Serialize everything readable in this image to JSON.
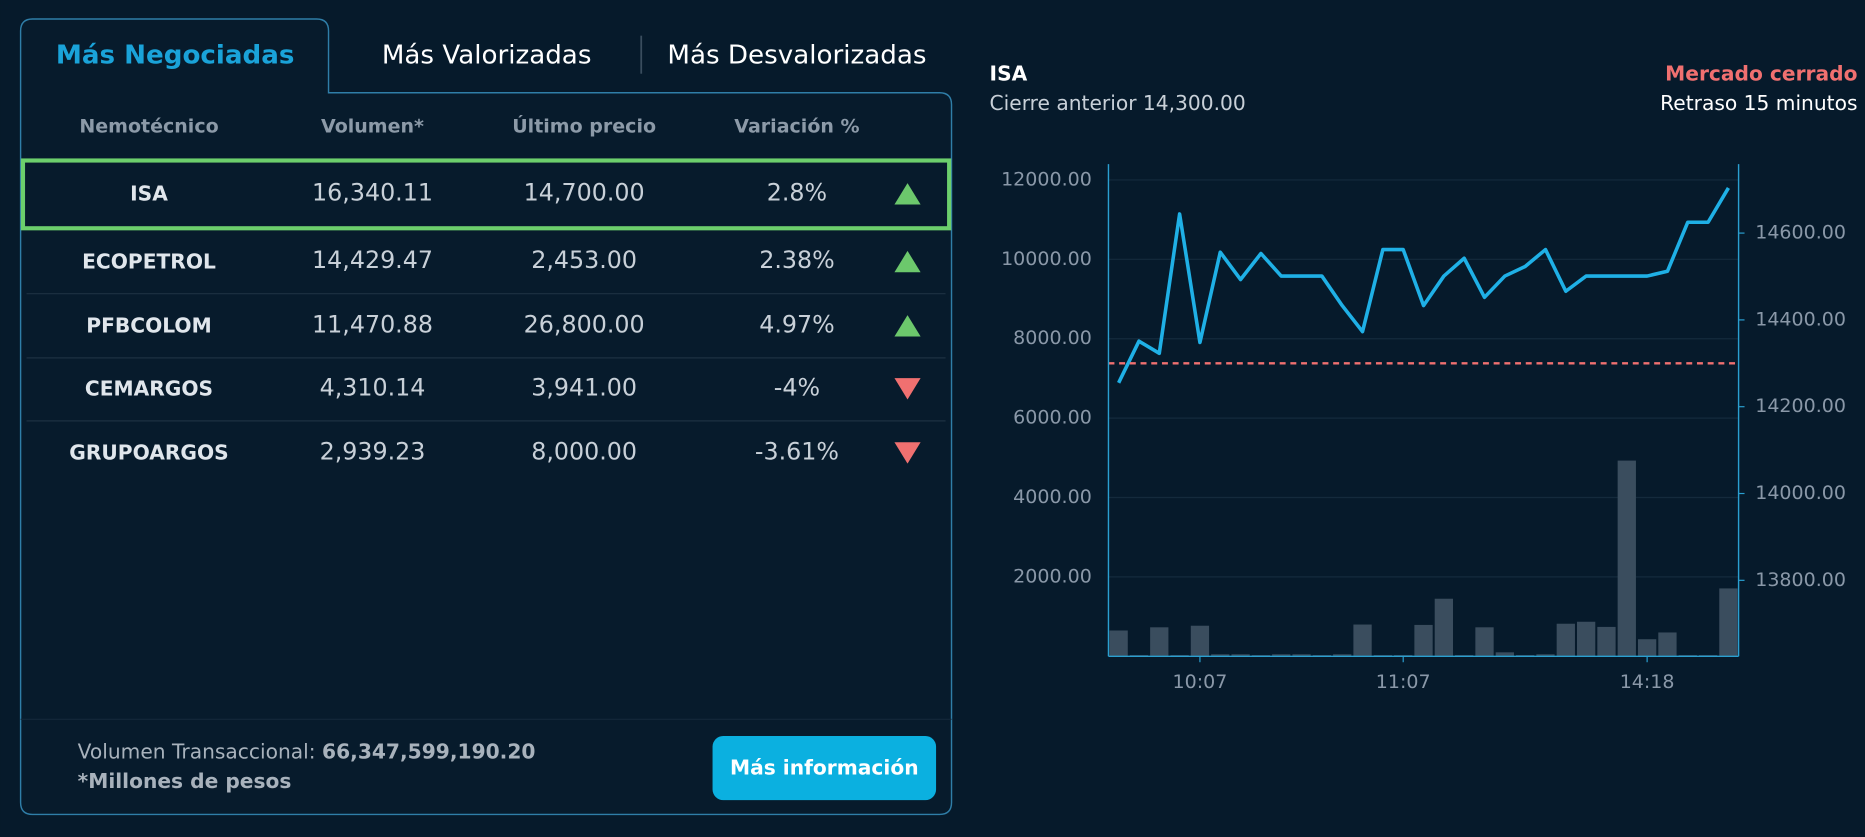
{
  "tabs": [
    "Más Negociadas",
    "Más Valorizadas",
    "Más Desvalorizadas"
  ],
  "table": {
    "headers": [
      "Nemotécnico",
      "Volumen*",
      "Último precio",
      "Variación %"
    ],
    "rows": [
      {
        "symbol": "ISA",
        "volume": "16,340.11",
        "price": "14,700.00",
        "change": "2.8%",
        "trend": "up"
      },
      {
        "symbol": "ECOPETROL",
        "volume": "14,429.47",
        "price": "2,453.00",
        "change": "2.38%",
        "trend": "up"
      },
      {
        "symbol": "PFBCOLOM",
        "volume": "11,470.88",
        "price": "26,800.00",
        "change": "4.97%",
        "trend": "up"
      },
      {
        "symbol": "CEMARGOS",
        "volume": "4,310.14",
        "price": "3,941.00",
        "change": "-4%",
        "trend": "down"
      },
      {
        "symbol": "GRUPOARGOS",
        "volume": "2,939.23",
        "price": "8,000.00",
        "change": "-3.61%",
        "trend": "down"
      }
    ]
  },
  "footer": {
    "volume_label": "Volumen Transaccional:",
    "volume_value": "66,347,599,190.20",
    "note": "*Millones de pesos"
  },
  "button": "Más información",
  "chart_data": {
    "type": "combo",
    "title": "ISA",
    "subtitle": "Cierre anterior 14,300.00",
    "status": "Mercado cerrado",
    "delay": "Retraso 15 minutos",
    "categories": [
      null,
      null,
      null,
      null,
      "10:07",
      null,
      null,
      null,
      null,
      null,
      null,
      null,
      null,
      null,
      "11:07",
      null,
      null,
      null,
      null,
      null,
      null,
      null,
      null,
      null,
      null,
      null,
      "14:18",
      null,
      null,
      null,
      null
    ],
    "series": [
      {
        "type": "bar",
        "color": "#3a4d5e",
        "values": [
          650,
          30,
          730,
          30,
          770,
          50,
          50,
          30,
          50,
          50,
          30,
          50,
          800,
          30,
          30,
          790,
          1450,
          30,
          730,
          100,
          30,
          50,
          820,
          870,
          740,
          4930,
          430,
          600,
          30,
          30,
          1710
        ]
      },
      {
        "type": "line",
        "axis": "y2",
        "color": "#1fb0e6",
        "values": [
          14255,
          14351,
          14323,
          14644,
          14348,
          14556,
          14493,
          14553,
          14501,
          14501,
          14501,
          14433,
          14373,
          14562,
          14562,
          14433,
          14501,
          14542,
          14452,
          14501,
          14523,
          14562,
          14466,
          14501,
          14501,
          14501,
          14501,
          14512,
          14625,
          14625,
          14704
        ]
      }
    ],
    "reference_line": 14300,
    "reference_color": "#f07070",
    "ylim": [
      0,
      12400
    ],
    "yticks": [
      {
        "value": 2000,
        "label": "2000.00"
      },
      {
        "value": 4000,
        "label": "4000.00"
      },
      {
        "value": 6000,
        "label": "6000.00"
      },
      {
        "value": 8000,
        "label": "8000.00"
      },
      {
        "value": 10000,
        "label": "10000.00"
      },
      {
        "value": 12000,
        "label": "12000.00"
      }
    ],
    "y2lim": [
      13625,
      14759
    ],
    "y2ticks": [
      {
        "value": 13800,
        "label": "13800.00"
      },
      {
        "value": 14000,
        "label": "14000.00"
      },
      {
        "value": 14200,
        "label": "14200.00"
      },
      {
        "value": 14400,
        "label": "14400.00"
      },
      {
        "value": 14600,
        "label": "14600.00"
      }
    ],
    "grid": true
  }
}
